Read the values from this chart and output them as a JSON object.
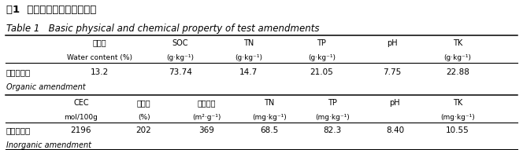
{
  "title_zh": "表1  供试改良剂基本理化性质",
  "title_en": "Table 1   Basic physical and chemical property of test amendments",
  "section1_headers_zh": [
    "含水量",
    "SOC",
    "TN",
    "TP",
    "pH",
    "TK"
  ],
  "section1_headers_en": [
    "Water content (%)",
    "(g·kg⁻¹)",
    "(g·kg⁻¹)",
    "(g·kg⁻¹)",
    "",
    "(g·kg⁻¹)"
  ],
  "section1_row_zh": "有机改良剂",
  "section1_row_en": "Organic amendment",
  "section1_values": [
    "13.2",
    "73.74",
    "14.7",
    "21.05",
    "7.75",
    "22.88"
  ],
  "section2_headers_zh": [
    "CEC",
    "吸水率",
    "比表面积",
    "TN",
    "TP",
    "pH",
    "TK"
  ],
  "section2_headers_en": [
    "mol/100g",
    "(%)",
    "(m²·g⁻¹)",
    "(mg·kg⁻¹)",
    "(mg·kg⁻¹)",
    "",
    "(mg·kg⁻¹)"
  ],
  "section2_row_zh": "无机改良剂",
  "section2_row_en": "Inorganic amendment",
  "section2_values": [
    "2196",
    "202",
    "369",
    "68.5",
    "82.3",
    "8.40",
    "10.55"
  ],
  "bg_color": "#ffffff",
  "text_color": "#000000",
  "line_color": "#000000",
  "fs_title_zh": 9.5,
  "fs_title_en": 8.5,
  "fs_header": 7.0,
  "fs_data": 7.5,
  "fs_subtext": 7.0,
  "s1_cols": [
    0.19,
    0.345,
    0.475,
    0.615,
    0.75,
    0.875,
    0.975
  ],
  "s2_cols": [
    0.155,
    0.275,
    0.395,
    0.515,
    0.635,
    0.755,
    0.875,
    0.975
  ]
}
